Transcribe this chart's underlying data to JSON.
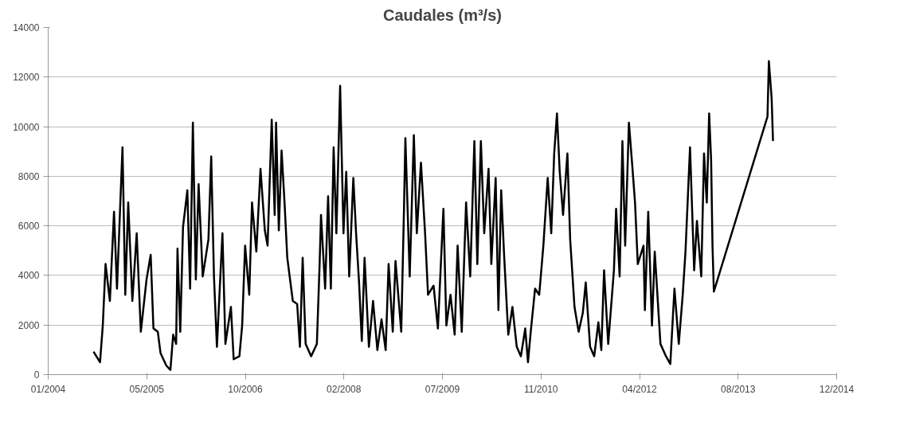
{
  "chart_data": {
    "type": "line",
    "title": "Caudales (m³/s)",
    "x": [
      "2004-09-01",
      "2004-10-04",
      "2004-10-18",
      "2004-11-01",
      "2004-11-23",
      "2004-12-14",
      "2004-12-29",
      "2005-01-26",
      "2005-02-09",
      "2005-02-24",
      "2005-03-17",
      "2005-04-08",
      "2005-04-29",
      "2005-05-28",
      "2005-06-18",
      "2005-07-02",
      "2005-07-24",
      "2005-08-07",
      "2005-09-05",
      "2005-09-26",
      "2005-10-10",
      "2005-10-25",
      "2005-11-01",
      "2005-11-15",
      "2005-11-29",
      "2005-12-21",
      "2006-01-04",
      "2006-01-18",
      "2006-02-02",
      "2006-02-16",
      "2006-03-09",
      "2006-04-07",
      "2006-04-21",
      "2006-05-05",
      "2006-05-20",
      "2006-06-17",
      "2006-07-02",
      "2006-07-30",
      "2006-08-13",
      "2006-09-11",
      "2006-09-25",
      "2006-10-10",
      "2006-10-31",
      "2006-11-14",
      "2006-12-06",
      "2006-12-27",
      "2007-01-18",
      "2007-02-01",
      "2007-02-22",
      "2007-03-09",
      "2007-03-16",
      "2007-03-30",
      "2007-04-13",
      "2007-04-28",
      "2007-05-12",
      "2007-06-09",
      "2007-07-01",
      "2007-07-15",
      "2007-07-29",
      "2007-08-13",
      "2007-09-10",
      "2007-10-09",
      "2007-10-23",
      "2007-10-30",
      "2007-11-20",
      "2007-12-05",
      "2007-12-19",
      "2008-01-02",
      "2008-01-16",
      "2008-02-04",
      "2008-02-21",
      "2008-03-06",
      "2008-03-21",
      "2008-04-11",
      "2008-04-25",
      "2008-05-10",
      "2008-05-24",
      "2008-06-07",
      "2008-06-29",
      "2008-07-20",
      "2008-08-11",
      "2008-09-01",
      "2008-09-22",
      "2008-10-07",
      "2008-10-28",
      "2008-11-11",
      "2008-12-10",
      "2008-12-24",
      "2008-12-31",
      "2009-01-22",
      "2009-02-12",
      "2009-02-27",
      "2009-03-20",
      "2009-04-10",
      "2009-04-25",
      "2009-05-23",
      "2009-06-14",
      "2009-07-12",
      "2009-07-27",
      "2009-08-17",
      "2009-09-07",
      "2009-09-22",
      "2009-10-13",
      "2009-11-04",
      "2009-11-25",
      "2009-12-16",
      "2009-12-31",
      "2010-01-18",
      "2010-02-04",
      "2010-02-26",
      "2010-03-12",
      "2010-04-03",
      "2010-04-17",
      "2010-05-01",
      "2010-05-15",
      "2010-06-06",
      "2010-06-27",
      "2010-07-19",
      "2010-08-09",
      "2010-08-31",
      "2010-09-14",
      "2010-09-28",
      "2010-10-20",
      "2010-11-10",
      "2010-12-01",
      "2010-12-23",
      "2011-01-10",
      "2011-01-25",
      "2011-02-08",
      "2011-02-22",
      "2011-03-11",
      "2011-04-02",
      "2011-04-16",
      "2011-05-08",
      "2011-05-29",
      "2011-06-19",
      "2011-07-04",
      "2011-07-26",
      "2011-08-16",
      "2011-09-06",
      "2011-09-21",
      "2011-10-05",
      "2011-10-26",
      "2011-11-24",
      "2011-12-05",
      "2011-12-23",
      "2012-01-06",
      "2012-01-20",
      "2012-02-08",
      "2012-02-25",
      "2012-03-10",
      "2012-03-24",
      "2012-04-22",
      "2012-04-29",
      "2012-05-16",
      "2012-06-04",
      "2012-06-18",
      "2012-07-17",
      "2012-08-14",
      "2012-09-05",
      "2012-09-26",
      "2012-10-18",
      "2012-11-07",
      "2012-11-21",
      "2012-12-14",
      "2013-01-04",
      "2013-01-18",
      "2013-02-09",
      "2013-02-23",
      "2013-03-09",
      "2013-03-21",
      "2013-03-31",
      "2013-04-07",
      "2013-04-14",
      "2014-01-11",
      "2014-01-18",
      "2014-02-01",
      "2014-02-08"
    ],
    "series": [
      {
        "color": "#000000",
        "values": [
          930,
          500,
          1980,
          4460,
          2970,
          6570,
          3470,
          9170,
          3220,
          6940,
          2970,
          5700,
          1730,
          3840,
          4830,
          1860,
          1730,
          870,
          370,
          190,
          1610,
          1240,
          5080,
          1730,
          5950,
          7430,
          3470,
          10160,
          3840,
          7680,
          3960,
          5450,
          8800,
          3960,
          1120,
          5700,
          1240,
          2730,
          620,
          740,
          1980,
          5200,
          3220,
          6940,
          4960,
          8300,
          5820,
          5200,
          10280,
          6440,
          10160,
          5820,
          9040,
          6940,
          4710,
          2970,
          2850,
          1120,
          4710,
          1240,
          740,
          1240,
          4460,
          6440,
          3470,
          7190,
          3470,
          9170,
          5700,
          11650,
          5700,
          8180,
          3960,
          7930,
          5700,
          3720,
          1360,
          4710,
          1120,
          2970,
          990,
          2230,
          990,
          4460,
          1730,
          4580,
          1730,
          6690,
          9540,
          3960,
          9660,
          5700,
          8550,
          5700,
          3220,
          3590,
          1860,
          6690,
          1980,
          3220,
          1610,
          5200,
          1730,
          6940,
          3960,
          9420,
          4460,
          9420,
          5700,
          8300,
          4460,
          7930,
          2600,
          7430,
          4960,
          1610,
          2730,
          1120,
          740,
          1860,
          500,
          1730,
          3470,
          3220,
          5200,
          7930,
          5700,
          8920,
          10530,
          8180,
          6440,
          8920,
          5450,
          2730,
          1730,
          2480,
          3720,
          1120,
          740,
          2110,
          990,
          4210,
          1240,
          4210,
          6690,
          3960,
          9420,
          5200,
          10160,
          8430,
          6940,
          4460,
          5200,
          2600,
          6570,
          1980,
          4960,
          1240,
          740,
          430,
          3470,
          1240,
          3220,
          4960,
          9170,
          4210,
          6200,
          3960,
          8920,
          6940,
          10530,
          8670,
          5200,
          3350,
          10410,
          12640,
          11150,
          9420
        ]
      }
    ],
    "xlim": [
      "2004-01-15",
      "2014-12-28"
    ],
    "xticks": [
      {
        "value": "2004-01-15",
        "label": "01/2004"
      },
      {
        "value": "2005-05-29",
        "label": "05/2005"
      },
      {
        "value": "2006-10-11",
        "label": "10/2006"
      },
      {
        "value": "2008-02-23",
        "label": "02/2008"
      },
      {
        "value": "2009-07-07",
        "label": "07/2009"
      },
      {
        "value": "2010-11-19",
        "label": "11/2010"
      },
      {
        "value": "2012-04-02",
        "label": "04/2012"
      },
      {
        "value": "2013-08-15",
        "label": "08/2013"
      },
      {
        "value": "2014-12-28",
        "label": "12/2014"
      }
    ],
    "ylim": [
      0,
      14000
    ],
    "yticks": [
      0,
      2000,
      4000,
      6000,
      8000,
      10000,
      12000,
      14000
    ],
    "grid": "y",
    "marker": "none",
    "line_style": "solid"
  }
}
